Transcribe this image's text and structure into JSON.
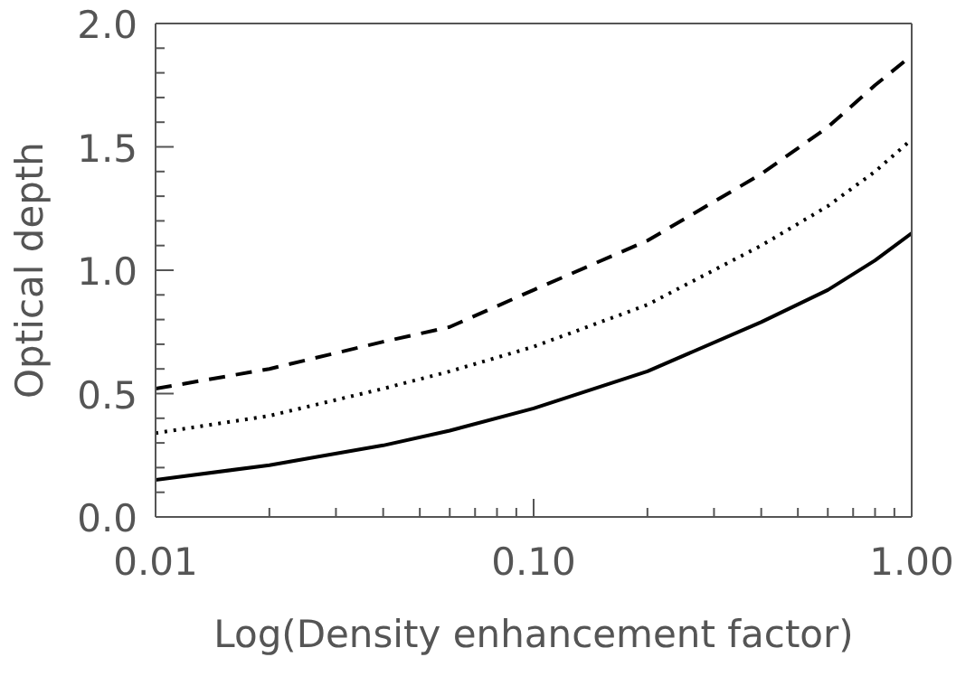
{
  "chart_data": {
    "type": "line",
    "xlabel": "Log(Density enhancement factor)",
    "ylabel": "Optical depth",
    "log": "x",
    "xlim": [
      0.01,
      1
    ],
    "ylim": [
      0,
      2
    ],
    "xticks": [
      0.01,
      {
        "value": 0.02,
        "label": null
      },
      {
        "value": 0.03,
        "label": null
      },
      {
        "value": 0.04,
        "label": null
      },
      {
        "value": 0.05,
        "label": null
      },
      {
        "value": 0.06,
        "label": null
      },
      {
        "value": 0.07,
        "label": null
      },
      {
        "value": 0.08,
        "label": null
      },
      {
        "value": 0.09,
        "label": null
      },
      {
        "value": 0.1,
        "label": "0.10"
      },
      {
        "value": 0.2,
        "label": null
      },
      {
        "value": 0.3,
        "label": null
      },
      {
        "value": 0.4,
        "label": null
      },
      {
        "value": 0.5,
        "label": null
      },
      {
        "value": 0.6,
        "label": null
      },
      {
        "value": 0.7,
        "label": null
      },
      {
        "value": 0.8,
        "label": null
      },
      {
        "value": 0.9,
        "label": null
      },
      {
        "value": 1,
        "label": "1.00"
      }
    ],
    "yticks": [
      {
        "value": 0,
        "label": "0.0"
      },
      {
        "value": 0.1,
        "label": null
      },
      {
        "value": 0.2,
        "label": null
      },
      {
        "value": 0.3,
        "label": null
      },
      {
        "value": 0.4,
        "label": null
      },
      0.5,
      {
        "value": 0.6,
        "label": null
      },
      {
        "value": 0.7,
        "label": null
      },
      {
        "value": 0.8,
        "label": null
      },
      {
        "value": 0.9,
        "label": null
      },
      {
        "value": 1,
        "label": "1.0"
      },
      {
        "value": 1.1,
        "label": null
      },
      {
        "value": 1.2,
        "label": null
      },
      {
        "value": 1.3,
        "label": null
      },
      {
        "value": 1.4,
        "label": null
      },
      1.5,
      {
        "value": 1.6,
        "label": null
      },
      {
        "value": 1.7,
        "label": null
      },
      {
        "value": 1.8,
        "label": null
      },
      {
        "value": 1.9,
        "label": null
      },
      {
        "value": 2,
        "label": "2.0"
      }
    ],
    "x": [
      0.01,
      0.02,
      0.04,
      0.06,
      0.1,
      0.2,
      0.4,
      0.6,
      0.8,
      1
    ],
    "grid": false,
    "legend": false,
    "marker": "none",
    "series": [
      {
        "color": "#000000",
        "line_style": "solid",
        "values": [
          0.15,
          0.21,
          0.29,
          0.35,
          0.44,
          0.59,
          0.79,
          0.92,
          1.04,
          1.15
        ]
      },
      {
        "color": "#000000",
        "line_style": "dotted",
        "values": [
          0.34,
          0.41,
          0.52,
          0.59,
          0.69,
          0.86,
          1.1,
          1.26,
          1.4,
          1.53
        ]
      },
      {
        "color": "#000000",
        "line_style": "dashed",
        "values": [
          0.52,
          0.6,
          0.71,
          0.77,
          0.92,
          1.12,
          1.39,
          1.58,
          1.75,
          1.87
        ]
      }
    ]
  }
}
